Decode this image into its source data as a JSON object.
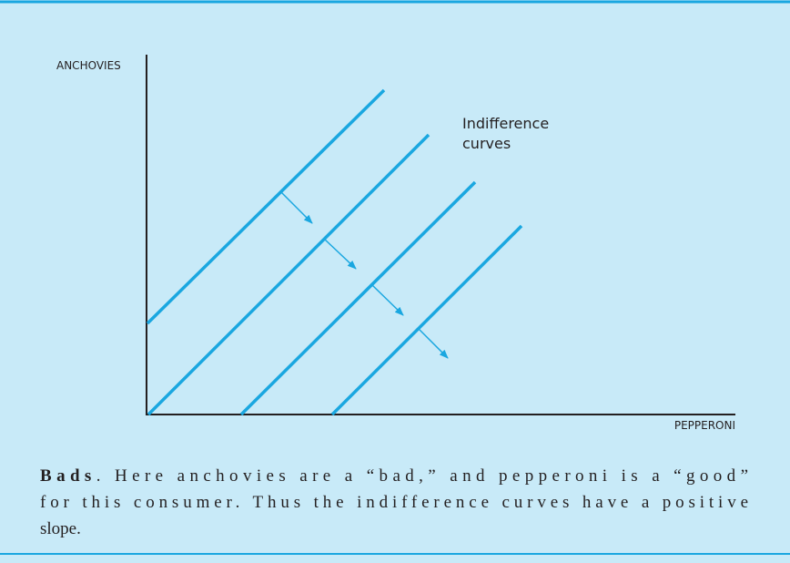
{
  "figure": {
    "y_axis_label": "ANCHOVIES",
    "x_axis_label": "PEPPERONI",
    "annotation": [
      "Indifference",
      "curves"
    ]
  },
  "caption": {
    "lead": "Bads",
    "lines": [
      ". Here anchovies are a “bad,” and pepperoni is a “good”",
      "for this consumer. Thus the indifference curves have a positive",
      "slope."
    ]
  }
}
